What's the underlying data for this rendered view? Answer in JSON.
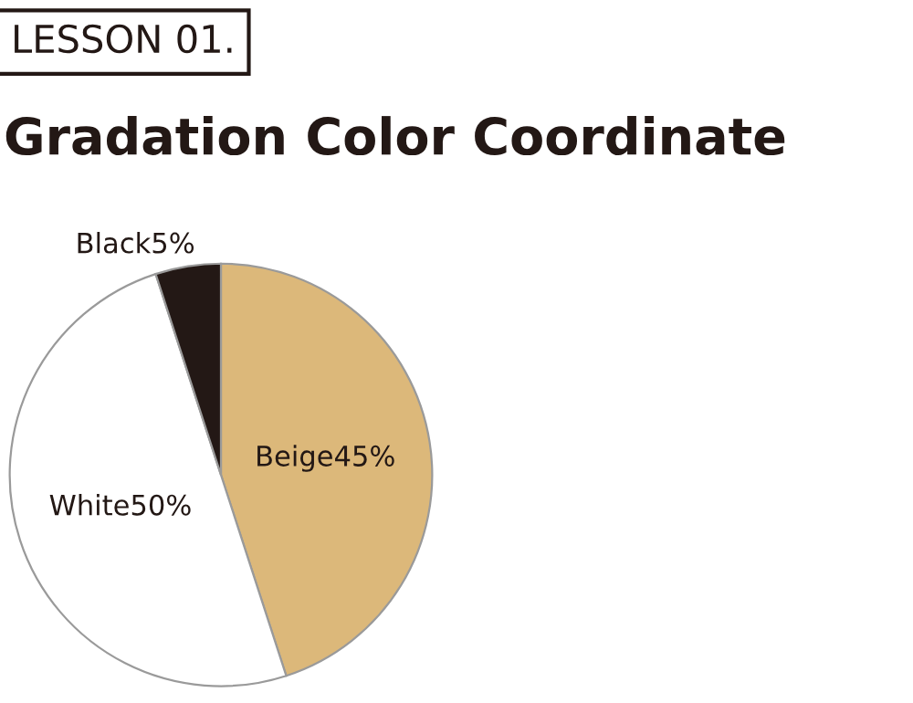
{
  "chart_data": {
    "type": "pie",
    "subtitle": "LESSON 01.",
    "title": "Gradation Color Coordinate",
    "categories": [
      "Beige",
      "White",
      "Black"
    ],
    "values": [
      45,
      50,
      5
    ],
    "value_labels": [
      "45%",
      "50%",
      "5%"
    ],
    "colors": [
      "#dcb87a",
      "#ffffff",
      "#231815"
    ]
  }
}
